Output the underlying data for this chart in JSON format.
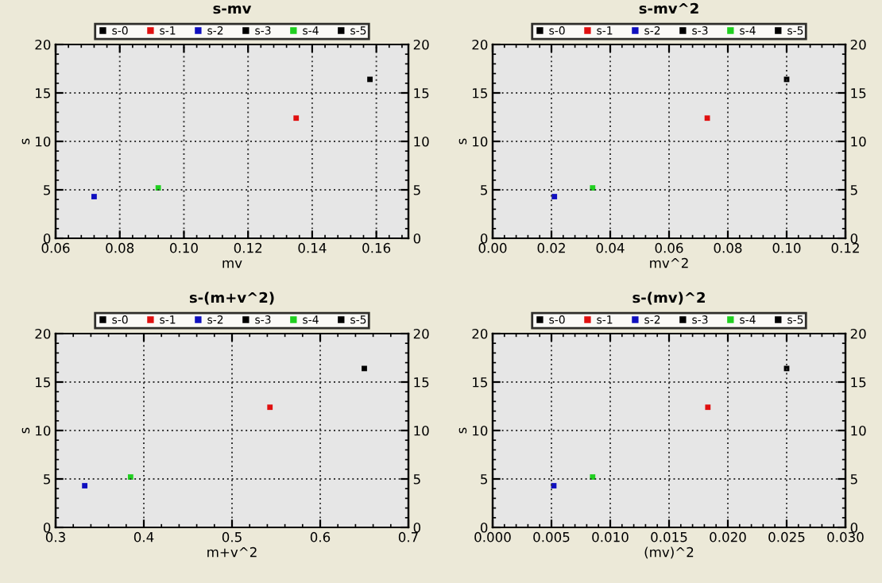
{
  "chart_data": [
    {
      "type": "scatter",
      "title": "s-mv",
      "xlabel": "mv",
      "ylabel": "s",
      "xlim": [
        0.06,
        0.17
      ],
      "xticks": [
        {
          "value": 0.06,
          "label": "0.06"
        },
        {
          "value": 0.08,
          "label": "0.08"
        },
        {
          "value": 0.1,
          "label": "0.10"
        },
        {
          "value": 0.12,
          "label": "0.12"
        },
        {
          "value": 0.14,
          "label": "0.14"
        },
        {
          "value": 0.16,
          "label": "0.16"
        }
      ],
      "ylim": [
        0,
        20
      ],
      "yticks": [
        0,
        5,
        10,
        15,
        20
      ],
      "y2lim": [
        0,
        20
      ],
      "y2ticks": [
        0,
        5,
        10,
        15,
        20
      ],
      "grid": true,
      "legend": "top",
      "marker": "square",
      "series": [
        {
          "name": "s-0",
          "color": "#000000",
          "x": [
            0.158
          ],
          "values": [
            16.4
          ]
        },
        {
          "name": "s-1",
          "color": "#e01010",
          "x": [
            0.135
          ],
          "values": [
            12.4
          ]
        },
        {
          "name": "s-2",
          "color": "#1010c0",
          "x": [
            0.072
          ],
          "values": [
            4.3
          ]
        },
        {
          "name": "s-3",
          "color": "#000000"
        },
        {
          "name": "s-4",
          "color": "#20d020",
          "x": [
            0.092
          ],
          "values": [
            5.2
          ]
        },
        {
          "name": "s-5",
          "color": "#000000"
        }
      ]
    },
    {
      "type": "scatter",
      "title": "s-mv^2",
      "xlabel": "mv^2",
      "ylabel": "s",
      "xlim": [
        0,
        0.12
      ],
      "xticks": [
        {
          "value": 0,
          "label": "0.00"
        },
        {
          "value": 0.02,
          "label": "0.02"
        },
        {
          "value": 0.04,
          "label": "0.04"
        },
        {
          "value": 0.06,
          "label": "0.06"
        },
        {
          "value": 0.08,
          "label": "0.08"
        },
        {
          "value": 0.1,
          "label": "0.10"
        },
        {
          "value": 0.12,
          "label": "0.12"
        }
      ],
      "ylim": [
        0,
        20
      ],
      "yticks": [
        0,
        5,
        10,
        15,
        20
      ],
      "y2lim": [
        0,
        20
      ],
      "y2ticks": [
        0,
        5,
        10,
        15,
        20
      ],
      "grid": true,
      "legend": "top",
      "marker": "square",
      "series": [
        {
          "name": "s-0",
          "color": "#000000",
          "x": [
            0.1
          ],
          "values": [
            16.4
          ]
        },
        {
          "name": "s-1",
          "color": "#e01010",
          "x": [
            0.073
          ],
          "values": [
            12.4
          ]
        },
        {
          "name": "s-2",
          "color": "#1010c0",
          "x": [
            0.021
          ],
          "values": [
            4.3
          ]
        },
        {
          "name": "s-3",
          "color": "#000000"
        },
        {
          "name": "s-4",
          "color": "#20d020",
          "x": [
            0.034
          ],
          "values": [
            5.2
          ]
        },
        {
          "name": "s-5",
          "color": "#000000"
        }
      ]
    },
    {
      "type": "scatter",
      "title": "s-(m+v^2)",
      "xlabel": "m+v^2",
      "ylabel": "s",
      "xlim": [
        0.3,
        0.7
      ],
      "xticks": [
        0.3,
        0.4,
        0.5,
        0.6,
        0.7
      ],
      "ylim": [
        0,
        20
      ],
      "yticks": [
        0,
        5,
        10,
        15,
        20
      ],
      "y2lim": [
        0,
        20
      ],
      "y2ticks": [
        0,
        5,
        10,
        15,
        20
      ],
      "grid": true,
      "legend": "top",
      "marker": "square",
      "series": [
        {
          "name": "s-0",
          "color": "#000000",
          "x": [
            0.65
          ],
          "values": [
            16.4
          ]
        },
        {
          "name": "s-1",
          "color": "#e01010",
          "x": [
            0.543
          ],
          "values": [
            12.4
          ]
        },
        {
          "name": "s-2",
          "color": "#1010c0",
          "x": [
            0.333
          ],
          "values": [
            4.3
          ]
        },
        {
          "name": "s-3",
          "color": "#000000"
        },
        {
          "name": "s-4",
          "color": "#20d020",
          "x": [
            0.385
          ],
          "values": [
            5.2
          ]
        },
        {
          "name": "s-5",
          "color": "#000000"
        }
      ]
    },
    {
      "type": "scatter",
      "title": "s-(mv)^2",
      "xlabel": "(mv)^2",
      "ylabel": "s",
      "xlim": [
        0,
        0.03
      ],
      "xticks": [
        {
          "value": 0,
          "label": "0.000"
        },
        {
          "value": 0.005,
          "label": "0.005"
        },
        {
          "value": 0.01,
          "label": "0.010"
        },
        {
          "value": 0.015,
          "label": "0.015"
        },
        {
          "value": 0.02,
          "label": "0.020"
        },
        {
          "value": 0.025,
          "label": "0.025"
        },
        {
          "value": 0.03,
          "label": "0.030"
        }
      ],
      "ylim": [
        0,
        20
      ],
      "yticks": [
        0,
        5,
        10,
        15,
        20
      ],
      "y2lim": [
        0,
        20
      ],
      "y2ticks": [
        0,
        5,
        10,
        15,
        20
      ],
      "grid": true,
      "legend": "top",
      "marker": "square",
      "series": [
        {
          "name": "s-0",
          "color": "#000000",
          "x": [
            0.025
          ],
          "values": [
            16.4
          ]
        },
        {
          "name": "s-1",
          "color": "#e01010",
          "x": [
            0.0183
          ],
          "values": [
            12.4
          ]
        },
        {
          "name": "s-2",
          "color": "#1010c0",
          "x": [
            0.0052
          ],
          "values": [
            4.3
          ]
        },
        {
          "name": "s-3",
          "color": "#000000"
        },
        {
          "name": "s-4",
          "color": "#20d020",
          "x": [
            0.0085
          ],
          "values": [
            5.2
          ]
        },
        {
          "name": "s-5",
          "color": "#000000"
        }
      ]
    }
  ]
}
